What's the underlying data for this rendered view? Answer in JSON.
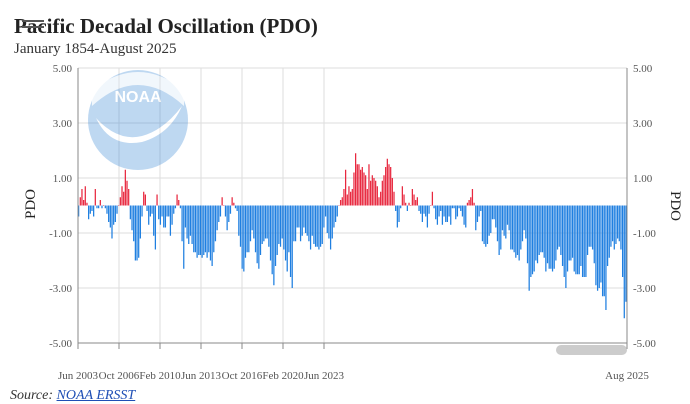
{
  "header": {
    "title": "Pacific Decadal Oscillation (PDO)",
    "subtitle": "January 1854-August 2025"
  },
  "logo": {
    "text": "NOAA"
  },
  "source": {
    "prefix": "Source:",
    "link_text": "NOAA ERSST"
  },
  "colors": {
    "positive": "#e8283f",
    "negative": "#1f7fe0",
    "grid": "#dddddd",
    "scrollbar": "#cccccc"
  },
  "chart_data": {
    "type": "bar",
    "ylabel_left": "PDO",
    "ylabel_right": "PDO",
    "ylim": [
      -5,
      5
    ],
    "yticks": [
      5,
      3,
      1,
      -1,
      -3,
      -5
    ],
    "ytick_labels": [
      "5.00",
      "3.00",
      "1.00",
      "-1.00",
      "-3.00",
      "-5.00"
    ],
    "xticks": [
      "Jun 2003",
      "Oct 2006",
      "Feb 2010",
      "Jun 2013",
      "Oct 2016",
      "Feb 2020",
      "Jun 2023",
      "Aug 2025"
    ],
    "x_start": "Jun 2003",
    "x_end": "Aug 2025",
    "grid": true,
    "series": [
      {
        "values": [
          -0.4,
          0.3,
          0.6,
          0.2,
          0.7,
          0.1,
          -0.5,
          -0.3,
          -0.2,
          -0.4,
          0.6,
          -0.1,
          -0.1,
          0.2,
          -0.1,
          0.0,
          -0.1,
          -0.3,
          -0.6,
          -0.8,
          -1.2,
          -0.7,
          -0.6,
          -0.3,
          0.0,
          0.3,
          0.7,
          0.5,
          1.3,
          0.9,
          0.6,
          -0.5,
          -0.9,
          -1.3,
          -2.0,
          -2.0,
          -1.9,
          -1.2,
          -0.4,
          0.5,
          0.4,
          -0.2,
          -0.7,
          -0.4,
          -0.3,
          -1.1,
          -1.6,
          0.4,
          -0.5,
          -0.7,
          -0.4,
          -0.8,
          -0.8,
          -0.4,
          -0.4,
          -1.1,
          -0.7,
          -0.3,
          -0.1,
          0.4,
          0.2,
          -0.1,
          -1.3,
          -2.3,
          -0.8,
          -1.2,
          -1.4,
          -1.1,
          -1.4,
          -1.7,
          -1.7,
          -1.9,
          -1.8,
          -1.8,
          -1.9,
          -1.8,
          -1.7,
          -1.9,
          -1.7,
          -2.0,
          -2.2,
          -1.7,
          -1.3,
          -0.9,
          -0.6,
          -0.4,
          0.3,
          0.0,
          -0.4,
          -0.9,
          -0.6,
          -0.3,
          0.3,
          0.1,
          -0.1,
          -0.2,
          -1.1,
          -1.5,
          -2.3,
          -2.4,
          -1.9,
          -1.7,
          -1.7,
          -1.3,
          -0.9,
          -1.2,
          -1.7,
          -2.1,
          -2.3,
          -1.8,
          -1.4,
          -1.3,
          -1.2,
          -1.2,
          -1.5,
          -2.0,
          -2.5,
          -2.9,
          -2.2,
          -1.8,
          -1.4,
          -1.5,
          -1.2,
          -1.6,
          -2.0,
          -2.4,
          -1.7,
          -2.6,
          -3.0,
          -1.3,
          -1.3,
          -0.8,
          -0.8,
          -1.3,
          -1.1,
          -0.8,
          -1.0,
          -1.1,
          -1.3,
          -1.6,
          -1.1,
          -1.4,
          -1.5,
          -1.5,
          -1.6,
          -1.5,
          -1.4,
          -0.8,
          -0.4,
          -1.0,
          -1.2,
          -1.6,
          -1.2,
          -0.8,
          -0.6,
          -0.4,
          0.0,
          0.2,
          0.3,
          0.6,
          1.3,
          0.4,
          0.7,
          0.5,
          0.6,
          1.2,
          1.9,
          1.5,
          1.5,
          1.3,
          1.4,
          1.2,
          1.1,
          0.6,
          1.5,
          0.9,
          1.1,
          1.0,
          0.9,
          0.7,
          0.3,
          0.5,
          0.9,
          1.1,
          1.4,
          1.7,
          1.5,
          1.4,
          1.0,
          0.5,
          -0.2,
          -0.8,
          -0.6,
          -0.1,
          0.7,
          0.4,
          0.1,
          -0.2,
          0.1,
          0.0,
          0.6,
          0.4,
          0.2,
          0.3,
          -0.2,
          -0.3,
          -0.6,
          -0.3,
          -0.4,
          -0.8,
          -0.3,
          0.0,
          0.5,
          -0.1,
          -0.5,
          -0.7,
          -0.4,
          -0.2,
          -0.7,
          -0.4,
          -0.6,
          -0.6,
          -0.4,
          -0.7,
          -0.1,
          -0.1,
          -0.5,
          -0.4,
          -0.1,
          -0.2,
          -0.4,
          -0.7,
          -0.8,
          0.1,
          0.2,
          0.3,
          0.6,
          0.1,
          -0.9,
          -0.6,
          -0.4,
          -0.2,
          -1.3,
          -1.4,
          -1.5,
          -1.4,
          -1.1,
          -1.0,
          -0.5,
          -0.5,
          -0.8,
          -1.3,
          -1.8,
          -1.6,
          -0.9,
          -1.1,
          -1.2,
          -0.7,
          -0.9,
          -1.6,
          -1.6,
          -1.7,
          -1.9,
          -1.8,
          -2.0,
          -1.6,
          -1.3,
          -0.9,
          -1.2,
          -2.1,
          -3.1,
          -2.6,
          -2.5,
          -2.4,
          -2.0,
          -2.1,
          -1.8,
          -1.7,
          -1.7,
          -1.9,
          -2.4,
          -2.1,
          -2.3,
          -2.3,
          -2.4,
          -2.3,
          -2.0,
          -1.6,
          -1.5,
          -1.8,
          -2.2,
          -2.6,
          -3.0,
          -2.4,
          -2.0,
          -2.0,
          -1.9,
          -2.4,
          -2.5,
          -2.5,
          -2.5,
          -2.2,
          -2.6,
          -2.6,
          -2.6,
          -1.8,
          -1.5,
          -1.5,
          -1.6,
          -2.1,
          -2.9,
          -3.1,
          -3.0,
          -2.8,
          -3.3,
          -3.3,
          -3.8,
          -2.2,
          -1.9,
          -1.5,
          -1.3,
          -1.6,
          -1.4,
          -1.2,
          -1.3,
          -1.6,
          -2.6,
          -4.1,
          -3.5
        ]
      }
    ]
  }
}
